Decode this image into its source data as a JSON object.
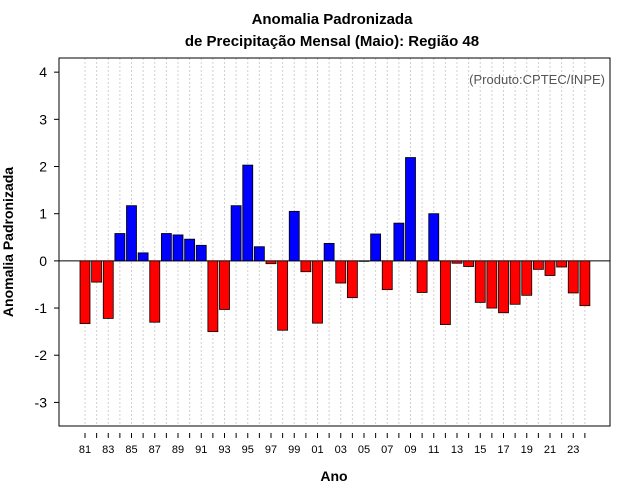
{
  "chart_data": {
    "type": "bar",
    "title_line1": "Anomalia Padronizada",
    "title_line2": "de Precipitação Mensal (Maio): Região 48",
    "xlabel": "Ano",
    "ylabel": "Anomalia Padronizada",
    "annotation": "(Produto:CPTEC/INPE)",
    "ylim": [
      -3.5,
      4.3
    ],
    "yticks": [
      -3,
      -2,
      -1,
      0,
      1,
      2,
      3,
      4
    ],
    "x_tick_labels": [
      "81",
      "83",
      "85",
      "87",
      "89",
      "91",
      "93",
      "95",
      "97",
      "99",
      "01",
      "03",
      "05",
      "07",
      "09",
      "11",
      "13",
      "15",
      "17",
      "19",
      "21",
      "23"
    ],
    "positive_color": "#0000ff",
    "negative_color": "#ff0000",
    "categories": [
      "1981",
      "1982",
      "1983",
      "1984",
      "1985",
      "1986",
      "1987",
      "1988",
      "1989",
      "1990",
      "1991",
      "1992",
      "1993",
      "1994",
      "1995",
      "1996",
      "1997",
      "1998",
      "1999",
      "2000",
      "2001",
      "2002",
      "2003",
      "2004",
      "2005",
      "2006",
      "2007",
      "2008",
      "2009",
      "2010",
      "2011",
      "2012",
      "2013",
      "2014",
      "2015",
      "2016",
      "2017",
      "2018",
      "2019",
      "2020",
      "2021",
      "2022",
      "2023",
      "2024"
    ],
    "values": [
      -1.33,
      -0.45,
      -1.22,
      0.58,
      1.17,
      0.17,
      -1.3,
      0.58,
      0.55,
      0.46,
      0.33,
      -1.5,
      -1.03,
      1.17,
      2.03,
      0.3,
      -0.06,
      -1.47,
      1.05,
      -0.23,
      -1.32,
      0.37,
      -0.47,
      -0.78,
      0.0,
      0.57,
      -0.61,
      0.8,
      2.19,
      -0.67,
      1.0,
      -1.35,
      -0.05,
      -0.12,
      -0.88,
      -1.0,
      -1.1,
      -0.92,
      -0.73,
      -0.18,
      -0.31,
      -0.13,
      -0.68,
      -0.95
    ]
  }
}
